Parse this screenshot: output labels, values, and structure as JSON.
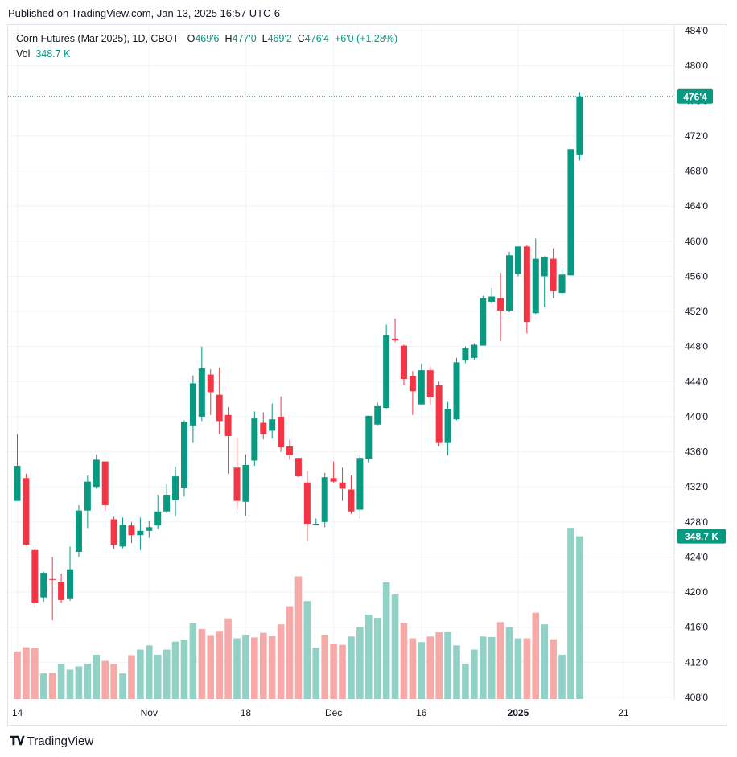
{
  "header": {
    "published": "Published on TradingView.com, Jan 13, 2025 16:57 UTC-6"
  },
  "legend": {
    "symbol": "Corn Futures (Mar 2025), 1D, CBOT",
    "o_label": "O",
    "o_value": "469'6",
    "h_label": "H",
    "h_value": "477'0",
    "l_label": "L",
    "l_value": "469'2",
    "c_label": "C",
    "c_value": "476'4",
    "change": "+6'0 (+1.28%)",
    "vol_label": "Vol",
    "vol_value": "348.7 K"
  },
  "footer": {
    "logo_text": "TradingView"
  },
  "colors": {
    "up": "#089981",
    "down": "#f23645",
    "vol_up": "#91d1c6",
    "vol_down": "#f7a9a7",
    "grid": "#f0f3fa"
  },
  "chart_data": {
    "type": "candlestick",
    "title": "Corn Futures (Mar 2025), 1D, CBOT",
    "y_ticks": [
      "484'0",
      "480'0",
      "476'0",
      "472'0",
      "468'0",
      "464'0",
      "460'0",
      "456'0",
      "452'0",
      "448'0",
      "444'0",
      "440'0",
      "436'0",
      "432'0",
      "428'0",
      "424'0",
      "420'0",
      "416'0",
      "412'0",
      "408'0"
    ],
    "ylim": [
      408,
      485
    ],
    "x_ticks": [
      {
        "index": 0,
        "label": "14"
      },
      {
        "index": 15,
        "label": "Nov"
      },
      {
        "index": 26,
        "label": "18"
      },
      {
        "index": 36,
        "label": "Dec"
      },
      {
        "index": 46,
        "label": "16"
      },
      {
        "index": 57,
        "label": "2025",
        "bold": true
      },
      {
        "index": 69,
        "label": "21"
      }
    ],
    "last_price_label": "476'4",
    "last_volume_label": "348.7 K",
    "candles": [
      {
        "o": 430.4,
        "h": 438.0,
        "l": 430.4,
        "c": 434.4
      },
      {
        "o": 433.0,
        "h": 433.5,
        "l": 425.3,
        "c": 425.4
      },
      {
        "o": 424.8,
        "h": 424.9,
        "l": 418.3,
        "c": 418.8
      },
      {
        "o": 419.4,
        "h": 422.3,
        "l": 418.9,
        "c": 422.2
      },
      {
        "o": 421.5,
        "h": 424.0,
        "l": 416.8,
        "c": 421.4
      },
      {
        "o": 421.2,
        "h": 422.1,
        "l": 418.8,
        "c": 419.1
      },
      {
        "o": 419.3,
        "h": 425.2,
        "l": 419.0,
        "c": 422.6
      },
      {
        "o": 424.6,
        "h": 429.9,
        "l": 424.0,
        "c": 429.3
      },
      {
        "o": 429.3,
        "h": 433.3,
        "l": 427.3,
        "c": 432.6
      },
      {
        "o": 432.0,
        "h": 435.7,
        "l": 431.8,
        "c": 435.1
      },
      {
        "o": 434.9,
        "h": 434.9,
        "l": 429.3,
        "c": 429.9
      },
      {
        "o": 428.3,
        "h": 428.6,
        "l": 424.9,
        "c": 425.4
      },
      {
        "o": 425.2,
        "h": 428.5,
        "l": 425.0,
        "c": 427.7
      },
      {
        "o": 427.6,
        "h": 428.0,
        "l": 425.6,
        "c": 426.5
      },
      {
        "o": 426.5,
        "h": 428.5,
        "l": 424.8,
        "c": 427.0
      },
      {
        "o": 427.0,
        "h": 428.1,
        "l": 426.2,
        "c": 427.4
      },
      {
        "o": 427.6,
        "h": 431.1,
        "l": 427.2,
        "c": 429.2
      },
      {
        "o": 429.2,
        "h": 432.3,
        "l": 429.0,
        "c": 431.1
      },
      {
        "o": 430.5,
        "h": 434.3,
        "l": 428.6,
        "c": 433.2
      },
      {
        "o": 431.9,
        "h": 439.6,
        "l": 430.9,
        "c": 439.4
      },
      {
        "o": 439.0,
        "h": 444.7,
        "l": 437.0,
        "c": 443.8
      },
      {
        "o": 440.0,
        "h": 448.0,
        "l": 439.5,
        "c": 445.5
      },
      {
        "o": 444.8,
        "h": 445.4,
        "l": 440.2,
        "c": 442.8
      },
      {
        "o": 442.5,
        "h": 445.6,
        "l": 438.0,
        "c": 439.5
      },
      {
        "o": 440.2,
        "h": 441.1,
        "l": 433.5,
        "c": 437.8
      },
      {
        "o": 434.2,
        "h": 437.6,
        "l": 429.4,
        "c": 430.4
      },
      {
        "o": 430.3,
        "h": 435.7,
        "l": 428.7,
        "c": 434.5
      },
      {
        "o": 435.0,
        "h": 440.6,
        "l": 434.4,
        "c": 439.8
      },
      {
        "o": 439.3,
        "h": 440.5,
        "l": 437.4,
        "c": 438.0
      },
      {
        "o": 438.4,
        "h": 441.5,
        "l": 437.5,
        "c": 439.7
      },
      {
        "o": 440.0,
        "h": 442.3,
        "l": 436.0,
        "c": 436.5
      },
      {
        "o": 436.6,
        "h": 437.4,
        "l": 435.1,
        "c": 435.6
      },
      {
        "o": 435.3,
        "h": 434.7,
        "l": 433.1,
        "c": 433.2
      },
      {
        "o": 432.5,
        "h": 433.8,
        "l": 425.8,
        "c": 427.8
      },
      {
        "o": 427.8,
        "h": 428.4,
        "l": 427.6,
        "c": 427.8
      },
      {
        "o": 428.0,
        "h": 433.6,
        "l": 427.4,
        "c": 433.1
      },
      {
        "o": 433.0,
        "h": 434.9,
        "l": 432.5,
        "c": 432.6
      },
      {
        "o": 432.5,
        "h": 434.2,
        "l": 430.4,
        "c": 431.8
      },
      {
        "o": 431.7,
        "h": 433.3,
        "l": 428.9,
        "c": 429.2
      },
      {
        "o": 429.4,
        "h": 435.6,
        "l": 428.4,
        "c": 435.3
      },
      {
        "o": 435.2,
        "h": 439.8,
        "l": 434.8,
        "c": 440.1
      },
      {
        "o": 439.1,
        "h": 441.6,
        "l": 439.0,
        "c": 441.2
      },
      {
        "o": 441.0,
        "h": 450.5,
        "l": 440.9,
        "c": 449.3
      },
      {
        "o": 448.9,
        "h": 451.2,
        "l": 448.5,
        "c": 448.7
      },
      {
        "o": 448.1,
        "h": 448.2,
        "l": 443.6,
        "c": 444.3
      },
      {
        "o": 444.6,
        "h": 445.2,
        "l": 440.2,
        "c": 442.9
      },
      {
        "o": 441.4,
        "h": 446.0,
        "l": 441.4,
        "c": 445.3
      },
      {
        "o": 445.3,
        "h": 445.7,
        "l": 441.3,
        "c": 442.2
      },
      {
        "o": 443.6,
        "h": 444.0,
        "l": 436.6,
        "c": 437.0
      },
      {
        "o": 437.0,
        "h": 441.7,
        "l": 435.6,
        "c": 440.9
      },
      {
        "o": 439.7,
        "h": 446.7,
        "l": 439.6,
        "c": 446.2
      },
      {
        "o": 446.4,
        "h": 448.0,
        "l": 446.1,
        "c": 447.8
      },
      {
        "o": 446.7,
        "h": 448.4,
        "l": 446.5,
        "c": 448.2
      },
      {
        "o": 448.1,
        "h": 453.8,
        "l": 448.1,
        "c": 453.5
      },
      {
        "o": 453.1,
        "h": 454.7,
        "l": 452.9,
        "c": 453.7
      },
      {
        "o": 453.5,
        "h": 456.4,
        "l": 448.6,
        "c": 452.1
      },
      {
        "o": 452.1,
        "h": 458.8,
        "l": 451.9,
        "c": 458.4
      },
      {
        "o": 456.3,
        "h": 459.4,
        "l": 456.0,
        "c": 459.4
      },
      {
        "o": 459.4,
        "h": 459.6,
        "l": 449.5,
        "c": 450.8
      },
      {
        "o": 451.8,
        "h": 460.3,
        "l": 451.7,
        "c": 458.0
      },
      {
        "o": 456.0,
        "h": 458.3,
        "l": 452.5,
        "c": 458.2
      },
      {
        "o": 458.0,
        "h": 459.2,
        "l": 453.5,
        "c": 454.3
      },
      {
        "o": 454.1,
        "h": 457.0,
        "l": 453.8,
        "c": 456.2
      },
      {
        "o": 456.1,
        "h": 470.3,
        "l": 456.1,
        "c": 470.5
      },
      {
        "o": 469.8,
        "h": 477.0,
        "l": 469.2,
        "c": 476.5
      }
    ],
    "volumes": [
      {
        "v": 10.2,
        "up": false
      },
      {
        "v": 11.1,
        "up": false
      },
      {
        "v": 10.9,
        "up": false
      },
      {
        "v": 5.5,
        "up": true
      },
      {
        "v": 5.6,
        "up": false
      },
      {
        "v": 7.6,
        "up": true
      },
      {
        "v": 6.3,
        "up": true
      },
      {
        "v": 7.0,
        "up": true
      },
      {
        "v": 7.6,
        "up": true
      },
      {
        "v": 9.5,
        "up": true
      },
      {
        "v": 8.2,
        "up": false
      },
      {
        "v": 7.6,
        "up": false
      },
      {
        "v": 5.5,
        "up": true
      },
      {
        "v": 9.4,
        "up": false
      },
      {
        "v": 10.6,
        "up": true
      },
      {
        "v": 11.5,
        "up": true
      },
      {
        "v": 9.5,
        "up": true
      },
      {
        "v": 10.6,
        "up": true
      },
      {
        "v": 12.3,
        "up": true
      },
      {
        "v": 12.6,
        "up": true
      },
      {
        "v": 16.2,
        "up": true
      },
      {
        "v": 15.0,
        "up": false
      },
      {
        "v": 13.7,
        "up": false
      },
      {
        "v": 14.6,
        "up": false
      },
      {
        "v": 17.3,
        "up": false
      },
      {
        "v": 13.0,
        "up": true
      },
      {
        "v": 13.8,
        "up": true
      },
      {
        "v": 13.2,
        "up": false
      },
      {
        "v": 14.2,
        "up": false
      },
      {
        "v": 13.5,
        "up": false
      },
      {
        "v": 16.0,
        "up": false
      },
      {
        "v": 19.9,
        "up": false
      },
      {
        "v": 26.3,
        "up": false
      },
      {
        "v": 21.0,
        "up": true
      },
      {
        "v": 11.0,
        "up": true
      },
      {
        "v": 13.8,
        "up": false
      },
      {
        "v": 11.9,
        "up": false
      },
      {
        "v": 11.6,
        "up": false
      },
      {
        "v": 13.4,
        "up": true
      },
      {
        "v": 15.4,
        "up": true
      },
      {
        "v": 18.1,
        "up": true
      },
      {
        "v": 17.4,
        "up": true
      },
      {
        "v": 25.0,
        "up": true
      },
      {
        "v": 22.4,
        "up": true
      },
      {
        "v": 16.3,
        "up": false
      },
      {
        "v": 13.0,
        "up": false
      },
      {
        "v": 12.2,
        "up": true
      },
      {
        "v": 13.4,
        "up": false
      },
      {
        "v": 14.3,
        "up": false
      },
      {
        "v": 14.5,
        "up": true
      },
      {
        "v": 11.5,
        "up": true
      },
      {
        "v": 7.6,
        "up": true
      },
      {
        "v": 10.6,
        "up": true
      },
      {
        "v": 13.4,
        "up": true
      },
      {
        "v": 13.3,
        "up": true
      },
      {
        "v": 16.5,
        "up": false
      },
      {
        "v": 15.4,
        "up": true
      },
      {
        "v": 13.0,
        "up": true
      },
      {
        "v": 13.0,
        "up": false
      },
      {
        "v": 18.5,
        "up": false
      },
      {
        "v": 16.0,
        "up": true
      },
      {
        "v": 12.8,
        "up": false
      },
      {
        "v": 9.5,
        "up": true
      },
      {
        "v": 36.7,
        "up": true
      },
      {
        "v": 34.9,
        "up": true
      }
    ]
  }
}
